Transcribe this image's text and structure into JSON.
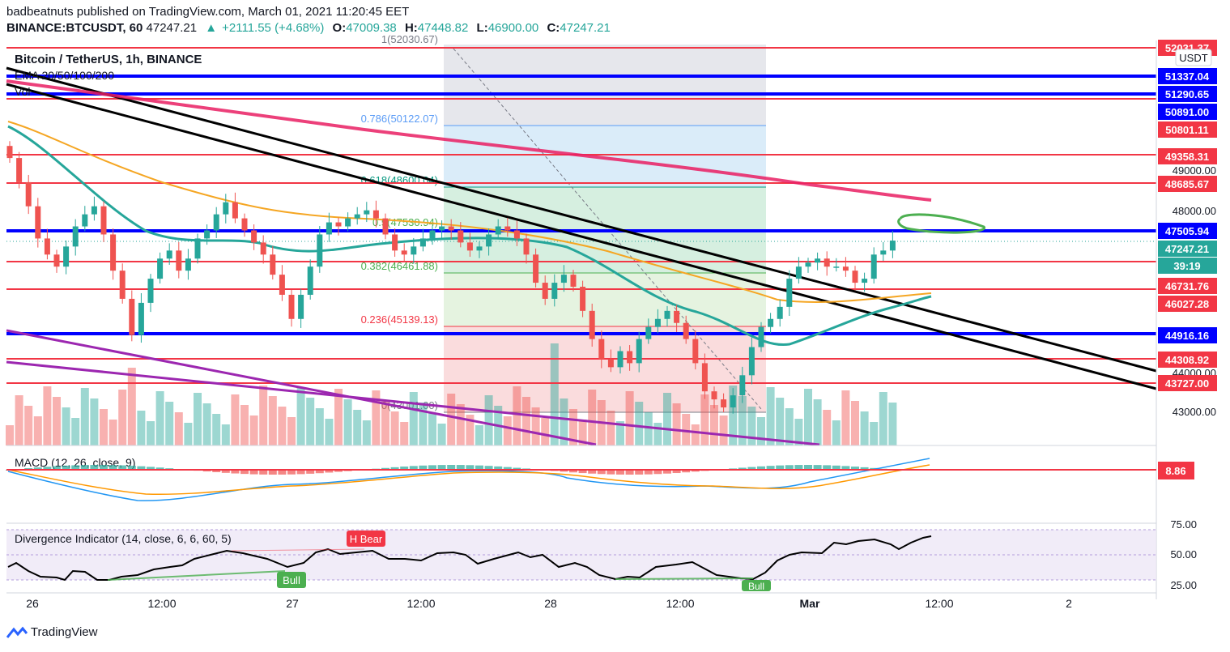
{
  "header": {
    "line1": "badbeatnuts published on TradingView.com, March 01, 2021 11:20:45 EET",
    "symbol": "BINANCE:BTCUSDT, 60",
    "last": "47247.21",
    "change": "+2111.55 (+4.68%)",
    "o_label": "O:",
    "o_value": "47009.38",
    "h_label": "H:",
    "h_value": "47448.82",
    "l_label": "L:",
    "l_value": "46900.00",
    "c_label": "C:",
    "c_value": "47247.21"
  },
  "legend": {
    "title": "Bitcoin / TetherUS, 1h, BINANCE",
    "ema": "EMA 20/50/100/200",
    "vol": "Vol"
  },
  "currency_badge": "USDT",
  "macd_label": "MACD (12, 26, close, 9)",
  "macd_value": "8.86",
  "div_label": "Divergence Indicator (14, close, 6, 6, 60, 5)",
  "signals": {
    "h_bear": "H Bear",
    "bull1": "Bull",
    "bull2": "Bull"
  },
  "fib": {
    "f1": "1(52030.67)",
    "f0786": "0.786(50122.07)",
    "f0618": "0.618(48600.04)",
    "f05": "0.5(47530.94)",
    "f0382": "0.382(46461.88)",
    "f0236": "0.236(45139.13)",
    "f0": "0(43001.00)"
  },
  "price_axis": [
    "49000.00",
    "48000.00",
    "44000.00",
    "43000.00"
  ],
  "price_tags": [
    {
      "text": "52031.37",
      "kind": "red"
    },
    {
      "text": "51337.04",
      "kind": "blue"
    },
    {
      "text": "51290.65",
      "kind": "blue"
    },
    {
      "text": "50891.00",
      "kind": "blue"
    },
    {
      "text": "50801.11",
      "kind": "red"
    },
    {
      "text": "49358.31",
      "kind": "red"
    },
    {
      "text": "48685.67",
      "kind": "red"
    },
    {
      "text": "47505.94",
      "kind": "blue"
    },
    {
      "text": "47247.21",
      "kind": "green"
    },
    {
      "text": "39:19",
      "kind": "green"
    },
    {
      "text": "46731.76",
      "kind": "red"
    },
    {
      "text": "46027.28",
      "kind": "red"
    },
    {
      "text": "44916.16",
      "kind": "blue"
    },
    {
      "text": "44308.92",
      "kind": "red"
    },
    {
      "text": "43727.00",
      "kind": "red"
    }
  ],
  "osc_axis": [
    "75.00",
    "50.00",
    "25.00"
  ],
  "time_axis": [
    "26",
    "12:00",
    "27",
    "12:00",
    "28",
    "12:00",
    "Mar",
    "12:00",
    "2"
  ],
  "brand": "TradingView",
  "chart_data": {
    "type": "candlestick",
    "title": "Bitcoin / TetherUS, 1h, BINANCE",
    "ylim": [
      42200,
      52100
    ],
    "horizontal_levels_red": [
      52031.37,
      50801.11,
      49358.31,
      48685.67,
      46731.76,
      46027.28,
      44308.92,
      43727.0
    ],
    "horizontal_levels_blue": [
      51337.04,
      51290.65,
      50891.0,
      47505.94,
      44916.16
    ],
    "fib_levels": [
      52030.67,
      50122.07,
      48600.04,
      47530.94,
      46461.88,
      45139.13,
      43001.0
    ],
    "closes": [
      49300,
      48700,
      48100,
      47300,
      46900,
      46600,
      47100,
      47600,
      47900,
      48100,
      47400,
      46500,
      45800,
      44900,
      45700,
      46300,
      46800,
      47000,
      46500,
      46800,
      47300,
      47500,
      47900,
      48200,
      47800,
      47500,
      47200,
      46900,
      46400,
      45900,
      45300,
      45900,
      46600,
      47400,
      47700,
      47600,
      47800,
      47900,
      48000,
      47800,
      47400,
      47000,
      46900,
      47100,
      47300,
      47500,
      47600,
      47500,
      47200,
      47000,
      47100,
      47400,
      47600,
      47500,
      47300,
      46900,
      46200,
      45800,
      46200,
      46400,
      46100,
      45500,
      44800,
      44300,
      44100,
      44500,
      44200,
      44800,
      45100,
      45300,
      45500,
      45200,
      44800,
      44200,
      43500,
      43300,
      43100,
      43400,
      43900,
      44600,
      45100,
      45300,
      45600,
      46300,
      46600,
      46700,
      46800,
      46600,
      46600,
      46500,
      46200,
      46300,
      46900,
      47000,
      47247
    ]
  }
}
